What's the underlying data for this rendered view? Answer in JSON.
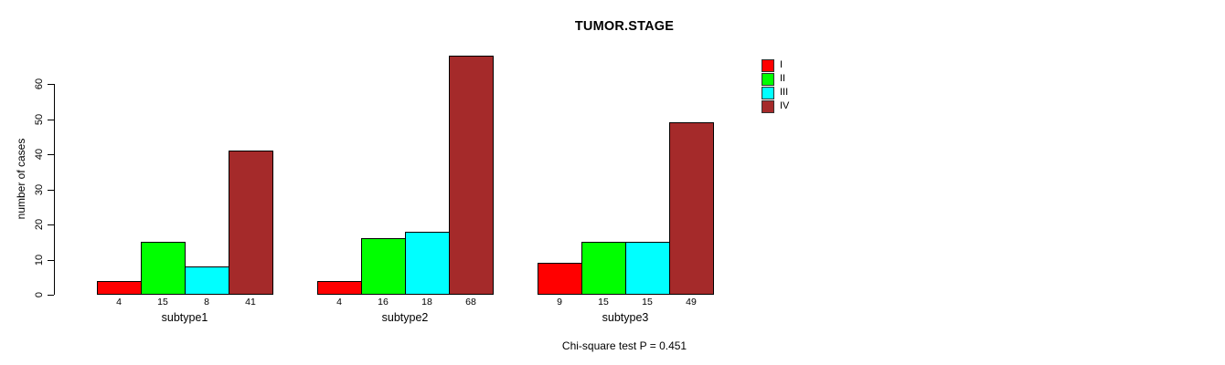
{
  "chart_data": {
    "type": "bar",
    "title": "TUMOR.STAGE",
    "xlabel": "",
    "ylabel": "number of cases",
    "categories": [
      "subtype1",
      "subtype2",
      "subtype3"
    ],
    "series": [
      {
        "name": "I",
        "color": "#ff0000",
        "values": [
          4,
          4,
          9
        ]
      },
      {
        "name": "II",
        "color": "#00ff00",
        "values": [
          15,
          16,
          15
        ]
      },
      {
        "name": "III",
        "color": "#00ffff",
        "values": [
          8,
          18,
          15
        ]
      },
      {
        "name": "IV",
        "color": "#a52a2a",
        "values": [
          41,
          68,
          49
        ]
      }
    ],
    "bar_value_labels": [
      [
        4,
        15,
        8,
        41
      ],
      [
        4,
        16,
        18,
        68
      ],
      [
        9,
        15,
        15,
        49
      ]
    ],
    "yticks": [
      0,
      10,
      20,
      30,
      40,
      50,
      60
    ],
    "ylim": [
      0,
      68
    ],
    "grid": false,
    "legend_position": "top-right",
    "annotation": "Chi-square test P = 0.451",
    "axis_color": "#000000",
    "background_color": "#ffffff"
  }
}
